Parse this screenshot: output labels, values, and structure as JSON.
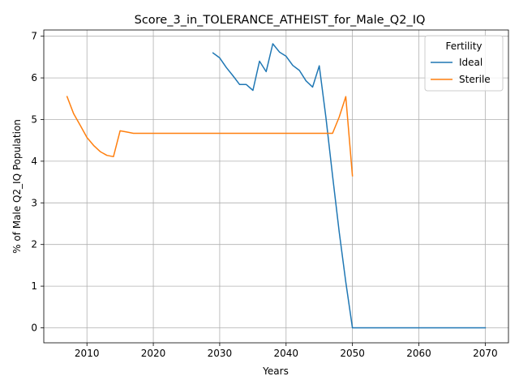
{
  "chart_data": {
    "type": "line",
    "title": "Score_3_in_TOLERANCE_ATHEIST_for_Male_Q2_IQ",
    "xlabel": "Years",
    "ylabel": "% of Male Q2_IQ Population",
    "xlim": [
      2003.5,
      2073.5
    ],
    "ylim": [
      -0.36,
      7.15
    ],
    "xticks": [
      2010,
      2020,
      2030,
      2040,
      2050,
      2060,
      2070
    ],
    "yticks": [
      0,
      1,
      2,
      3,
      4,
      5,
      6,
      7
    ],
    "grid": true,
    "legend": {
      "title": "Fertility",
      "placement": "top-right"
    },
    "series": [
      {
        "name": "Ideal",
        "color": "#1f77b4",
        "x": [
          2029,
          2030,
          2031,
          2032,
          2033,
          2034,
          2035,
          2036,
          2037,
          2038,
          2039,
          2040,
          2041,
          2042,
          2043,
          2044,
          2045,
          2046,
          2047,
          2048,
          2049,
          2050,
          2051,
          2055,
          2060,
          2065,
          2070
        ],
        "y": [
          6.6,
          6.48,
          6.25,
          6.05,
          5.84,
          5.84,
          5.7,
          6.4,
          6.15,
          6.82,
          6.62,
          6.52,
          6.3,
          6.18,
          5.93,
          5.78,
          6.29,
          5.05,
          3.65,
          2.3,
          1.1,
          0,
          0,
          0,
          0,
          0,
          0
        ]
      },
      {
        "name": "Sterile",
        "color": "#ff7f0e",
        "x": [
          2007,
          2008,
          2009,
          2010,
          2011,
          2012,
          2013,
          2014,
          2015,
          2016,
          2017,
          2018,
          2020,
          2025,
          2030,
          2035,
          2040,
          2045,
          2046,
          2047,
          2048,
          2049,
          2050
        ],
        "y": [
          5.55,
          5.14,
          4.86,
          4.57,
          4.38,
          4.23,
          4.14,
          4.11,
          4.73,
          4.7,
          4.67,
          4.67,
          4.67,
          4.67,
          4.67,
          4.67,
          4.67,
          4.67,
          4.67,
          4.67,
          5.06,
          5.55,
          3.65
        ]
      }
    ]
  }
}
